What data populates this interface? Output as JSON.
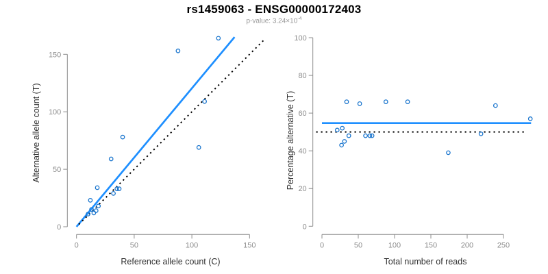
{
  "header": {
    "title": "rs1459063 - ENSG00000172403",
    "pvalue_base": "p-value: 3.24×10",
    "pvalue_exponent": "-4"
  },
  "colors": {
    "point": "#1874CD",
    "fit_line": "#1E8FFF",
    "reference_line": "#000000",
    "axis": "#8c8c8c",
    "tick_label": "#8c8c8c",
    "axis_label": "#303030",
    "title": "#000000",
    "subtitle": "#989898",
    "background": "#ffffff"
  },
  "chart_data": [
    {
      "type": "scatter",
      "name": "allele-count-scatter",
      "title": "",
      "xlabel": "Reference allele count (C)",
      "ylabel": "Alternative allele count (T)",
      "xticks": [
        0,
        50,
        100,
        150
      ],
      "yticks": [
        0,
        50,
        100,
        150
      ],
      "xlim": [
        0,
        171
      ],
      "ylim": [
        0,
        169
      ],
      "grid": false,
      "legend": "none",
      "points": [
        [
          10,
          11
        ],
        [
          13,
          15
        ],
        [
          15,
          12
        ],
        [
          17,
          14
        ],
        [
          19,
          18
        ],
        [
          12,
          23
        ],
        [
          18,
          34
        ],
        [
          32,
          29
        ],
        [
          35,
          33
        ],
        [
          37,
          33
        ],
        [
          30,
          59
        ],
        [
          40,
          78
        ],
        [
          106,
          69
        ],
        [
          111,
          109
        ],
        [
          88,
          153
        ],
        [
          123,
          164
        ]
      ],
      "lines": [
        {
          "label": "regression-line",
          "style": "solid",
          "color": "#1E8FFF",
          "from": [
            0,
            0
          ],
          "to": [
            137,
            165
          ]
        },
        {
          "label": "identity-line",
          "style": "dotted",
          "color": "#000000",
          "from": [
            2,
            2
          ],
          "to": [
            163,
            163
          ]
        }
      ]
    },
    {
      "type": "scatter",
      "name": "percentage-reads-scatter",
      "title": "",
      "xlabel": "Total number of reads",
      "ylabel": "Percentage alternative (T)",
      "xticks": [
        0,
        50,
        100,
        150,
        200,
        250
      ],
      "yticks": [
        0,
        20,
        40,
        60,
        80,
        100
      ],
      "xlim": [
        0,
        298
      ],
      "ylim": [
        0,
        100
      ],
      "grid": false,
      "legend": "none",
      "points": [
        [
          21,
          51
        ],
        [
          28,
          52
        ],
        [
          27,
          43
        ],
        [
          31,
          45
        ],
        [
          34,
          66
        ],
        [
          37,
          48
        ],
        [
          52,
          65
        ],
        [
          60,
          48
        ],
        [
          66,
          48
        ],
        [
          69,
          48
        ],
        [
          88,
          66
        ],
        [
          118,
          66
        ],
        [
          174,
          39
        ],
        [
          219,
          49
        ],
        [
          239,
          64
        ],
        [
          287,
          57
        ]
      ],
      "lines": [
        {
          "label": "mean-percentage-line",
          "style": "solid",
          "color": "#1E8FFF",
          "from": [
            0,
            54.7
          ],
          "to": [
            288,
            54.7
          ]
        },
        {
          "label": "fifty-percent-line",
          "style": "dotted",
          "color": "#000000",
          "from": [
            -8,
            50
          ],
          "to": [
            281,
            50
          ]
        }
      ]
    }
  ]
}
